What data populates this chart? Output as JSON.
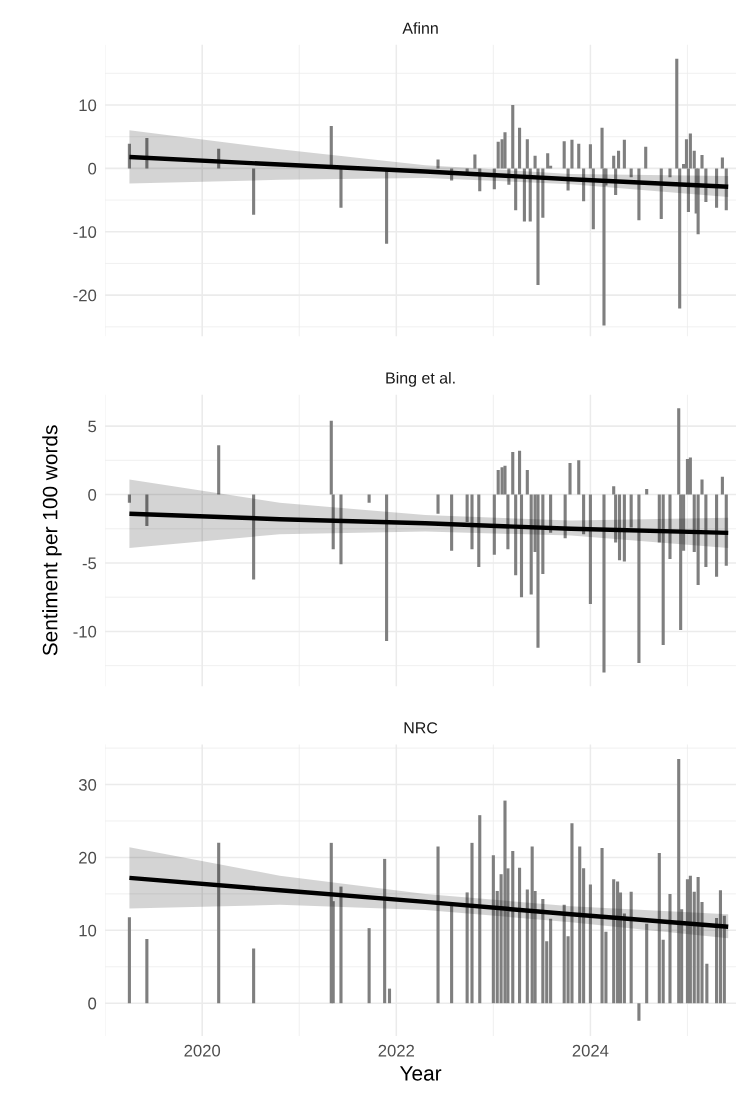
{
  "chart_data": [
    {
      "type": "bar",
      "title": "Afinn",
      "xlim": [
        2019.0,
        2025.5
      ],
      "xticks": [
        2020,
        2022,
        2024
      ],
      "ylim": [
        -26.5,
        19.5
      ],
      "yticks": [
        -20,
        -10,
        0,
        10
      ],
      "grid": true,
      "tick_labels": "y",
      "series": [
        {
          "color": "#7f7f7f",
          "x": [
            2019.25,
            2019.43,
            2020.17,
            2020.53,
            2021.33,
            2021.43,
            2021.9,
            2022.43,
            2022.57,
            2022.73,
            2022.81,
            2022.86,
            2023.01,
            2023.05,
            2023.09,
            2023.12,
            2023.16,
            2023.2,
            2023.23,
            2023.27,
            2023.32,
            2023.35,
            2023.38,
            2023.43,
            2023.46,
            2023.51,
            2023.56,
            2023.59,
            2023.73,
            2023.77,
            2023.81,
            2023.88,
            2023.93,
            2024.0,
            2024.03,
            2024.12,
            2024.14,
            2024.16,
            2024.24,
            2024.26,
            2024.29,
            2024.35,
            2024.42,
            2024.5,
            2024.57,
            2024.73,
            2024.82,
            2024.89,
            2024.92,
            2024.96,
            2024.99,
            2025.01,
            2025.03,
            2025.07,
            2025.09,
            2025.11,
            2025.15,
            2025.19,
            2025.3,
            2025.36,
            2025.4
          ],
          "values": [
            3.9,
            4.8,
            3.1,
            -7.3,
            6.7,
            -6.2,
            -11.9,
            1.4,
            -1.9,
            -1.0,
            2.2,
            -3.6,
            -3.3,
            4.2,
            4.6,
            5.7,
            -2.6,
            10.0,
            -6.6,
            6.4,
            -8.4,
            4.6,
            -8.4,
            2.0,
            -18.4,
            -7.8,
            2.4,
            0.4,
            4.3,
            -3.5,
            4.5,
            3.9,
            -5.2,
            3.8,
            -9.6,
            6.4,
            -24.8,
            -2.7,
            2.0,
            -4.2,
            2.8,
            4.5,
            -1.4,
            -8.2,
            3.4,
            -8.0,
            -1.4,
            17.3,
            -22.1,
            0.7,
            4.6,
            -6.9,
            5.5,
            2.8,
            -7.1,
            -10.4,
            2.1,
            -5.3,
            -6.2,
            1.7,
            -6.6
          ]
        },
        {
          "type": "line",
          "color": "#000000",
          "x": [
            2019.25,
            2020.8,
            2022.3,
            2023.8,
            2025.42
          ],
          "values": [
            1.8,
            0.6,
            -0.5,
            -1.7,
            -2.9
          ],
          "lower": [
            -2.4,
            -1.8,
            -1.5,
            -2.5,
            -4.5
          ],
          "upper": [
            6.0,
            3.0,
            0.5,
            -0.9,
            -1.2
          ]
        }
      ]
    },
    {
      "type": "bar",
      "title": "Bing et al.",
      "ylabel": "Sentiment per 100 words",
      "xlim": [
        2019.0,
        2025.5
      ],
      "xticks": [
        2020,
        2022,
        2024
      ],
      "ylim": [
        -14,
        7.3
      ],
      "yticks": [
        -10,
        -5,
        0,
        5
      ],
      "grid": true,
      "tick_labels": "y",
      "series": [
        {
          "color": "#7f7f7f",
          "x": [
            2019.25,
            2019.43,
            2020.17,
            2020.53,
            2021.33,
            2021.35,
            2021.43,
            2021.72,
            2021.9,
            2022.43,
            2022.57,
            2022.73,
            2022.78,
            2022.85,
            2023.01,
            2023.05,
            2023.09,
            2023.12,
            2023.15,
            2023.2,
            2023.23,
            2023.27,
            2023.29,
            2023.35,
            2023.39,
            2023.43,
            2023.46,
            2023.51,
            2023.59,
            2023.74,
            2023.79,
            2023.88,
            2023.93,
            2024.0,
            2024.14,
            2024.24,
            2024.26,
            2024.3,
            2024.35,
            2024.42,
            2024.5,
            2024.58,
            2024.71,
            2024.75,
            2024.82,
            2024.91,
            2024.93,
            2024.96,
            2025.0,
            2025.03,
            2025.07,
            2025.11,
            2025.15,
            2025.19,
            2025.3,
            2025.36,
            2025.4
          ],
          "values": [
            -0.6,
            -2.3,
            3.6,
            -6.2,
            5.4,
            -4.0,
            -5.1,
            -0.6,
            -10.7,
            -1.4,
            -4.1,
            -2.0,
            -4.0,
            -5.3,
            -4.4,
            1.8,
            2.0,
            2.1,
            -4.0,
            3.1,
            -5.9,
            3.2,
            -7.5,
            1.8,
            -7.3,
            -4.2,
            -11.2,
            -5.8,
            -2.8,
            -3.2,
            2.3,
            2.5,
            -2.9,
            -8.0,
            -13.0,
            0.6,
            -3.5,
            -4.8,
            -4.9,
            -2.4,
            -12.3,
            0.4,
            -3.5,
            -11.0,
            -4.7,
            6.3,
            -9.9,
            -4.1,
            2.6,
            2.7,
            -4.2,
            -6.6,
            1.1,
            -5.3,
            -6.0,
            1.3,
            -5.2
          ]
        },
        {
          "type": "line",
          "color": "#000000",
          "x": [
            2019.25,
            2020.8,
            2022.3,
            2023.8,
            2025.42
          ],
          "values": [
            -1.4,
            -1.8,
            -2.1,
            -2.5,
            -2.8
          ],
          "lower": [
            -3.9,
            -2.9,
            -2.7,
            -3.0,
            -3.9
          ],
          "upper": [
            1.1,
            -0.6,
            -1.5,
            -1.9,
            -1.7
          ]
        }
      ]
    },
    {
      "type": "bar",
      "title": "NRC",
      "xlabel": "Year",
      "xlim": [
        2019.0,
        2025.5
      ],
      "xticks": [
        2020,
        2022,
        2024
      ],
      "ylim": [
        -4.5,
        35.5
      ],
      "yticks": [
        0,
        10,
        20,
        30
      ],
      "grid": true,
      "series": [
        {
          "color": "#7f7f7f",
          "x": [
            2019.25,
            2019.43,
            2020.17,
            2020.53,
            2021.33,
            2021.35,
            2021.43,
            2021.72,
            2021.88,
            2021.93,
            2022.43,
            2022.57,
            2022.73,
            2022.78,
            2022.86,
            2023.0,
            2023.04,
            2023.08,
            2023.12,
            2023.15,
            2023.2,
            2023.27,
            2023.35,
            2023.4,
            2023.43,
            2023.51,
            2023.55,
            2023.59,
            2023.73,
            2023.77,
            2023.81,
            2023.89,
            2023.93,
            2024.0,
            2024.12,
            2024.16,
            2024.24,
            2024.28,
            2024.31,
            2024.35,
            2024.42,
            2024.5,
            2024.58,
            2024.71,
            2024.75,
            2024.82,
            2024.91,
            2024.94,
            2025.0,
            2025.03,
            2025.07,
            2025.11,
            2025.15,
            2025.2,
            2025.3,
            2025.34,
            2025.38
          ],
          "values": [
            11.8,
            8.8,
            22.0,
            7.5,
            22.0,
            14.0,
            16.0,
            10.3,
            19.8,
            2.0,
            21.5,
            13.7,
            15.2,
            22.0,
            25.8,
            20.3,
            15.4,
            17.7,
            27.8,
            18.5,
            20.9,
            18.6,
            15.6,
            21.5,
            15.4,
            14.3,
            8.5,
            11.6,
            13.5,
            9.2,
            24.7,
            21.5,
            18.5,
            16.3,
            21.3,
            9.8,
            17.0,
            16.7,
            15.2,
            12.3,
            15.3,
            -2.4,
            10.9,
            20.6,
            8.7,
            15.0,
            33.5,
            12.9,
            17.0,
            17.5,
            15.3,
            17.3,
            13.9,
            5.4,
            11.7,
            15.5,
            12.0
          ]
        },
        {
          "type": "line",
          "color": "#000000",
          "x": [
            2019.25,
            2020.8,
            2022.3,
            2023.8,
            2025.42
          ],
          "values": [
            17.2,
            15.5,
            13.9,
            12.2,
            10.5
          ],
          "lower": [
            13.0,
            13.5,
            12.8,
            11.1,
            8.9
          ],
          "upper": [
            21.4,
            17.5,
            15.0,
            13.3,
            12.2
          ]
        }
      ]
    }
  ]
}
